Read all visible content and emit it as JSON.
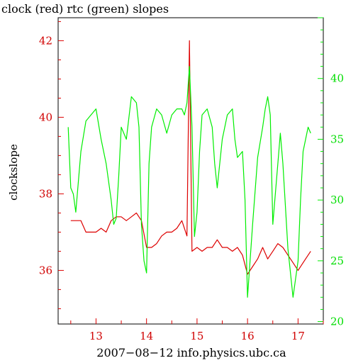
{
  "chart_data": {
    "type": "line",
    "title": "clock (red) rtc (green) slopes",
    "xlabel": "2007−08−12 info.physics.ubc.ca",
    "ylabel": "clockslope",
    "x_ticks": [
      "13",
      "14",
      "15",
      "16",
      "17"
    ],
    "y_left_ticks": [
      "36",
      "38",
      "40",
      "42"
    ],
    "y_right_ticks": [
      "20",
      "25",
      "30",
      "35",
      "40"
    ],
    "xlim": [
      12.25,
      17.5
    ],
    "ylim_left": [
      34.6,
      42.6
    ],
    "ylim_right": [
      19.8,
      45.0
    ],
    "colors": {
      "clock": "#dd0000",
      "rtc": "#00ee00",
      "frame": "#000000"
    },
    "series": [
      {
        "axis": "left",
        "color": "#dd0000",
        "x": [
          12.5,
          12.6,
          12.7,
          12.8,
          12.9,
          13.0,
          13.1,
          13.2,
          13.3,
          13.4,
          13.5,
          13.6,
          13.7,
          13.8,
          13.9,
          14.0,
          14.1,
          14.2,
          14.3,
          14.4,
          14.5,
          14.6,
          14.7,
          14.8,
          14.85,
          14.9,
          15.0,
          15.1,
          15.2,
          15.3,
          15.4,
          15.5,
          15.6,
          15.7,
          15.8,
          15.9,
          16.0,
          16.1,
          16.2,
          16.3,
          16.4,
          16.5,
          16.6,
          16.7,
          16.8,
          16.9,
          17.0,
          17.1,
          17.2,
          17.25
        ],
        "y": [
          37.3,
          37.3,
          37.3,
          37.0,
          37.0,
          37.0,
          37.1,
          37.0,
          37.3,
          37.4,
          37.4,
          37.3,
          37.4,
          37.5,
          37.3,
          36.6,
          36.6,
          36.7,
          36.9,
          37.0,
          37.0,
          37.1,
          37.3,
          36.9,
          42.0,
          36.5,
          36.6,
          36.5,
          36.6,
          36.6,
          36.8,
          36.6,
          36.6,
          36.5,
          36.6,
          36.4,
          35.9,
          36.1,
          36.3,
          36.6,
          36.3,
          36.5,
          36.7,
          36.6,
          36.4,
          36.2,
          36.0,
          36.2,
          36.4,
          36.5
        ]
      },
      {
        "axis": "right",
        "color": "#00ee00",
        "x": [
          12.45,
          12.5,
          12.55,
          12.6,
          12.7,
          12.8,
          12.9,
          13.0,
          13.1,
          13.2,
          13.3,
          13.35,
          13.4,
          13.45,
          13.5,
          13.6,
          13.7,
          13.8,
          13.85,
          13.9,
          13.95,
          14.0,
          14.05,
          14.1,
          14.2,
          14.3,
          14.4,
          14.5,
          14.6,
          14.7,
          14.75,
          14.8,
          14.85,
          14.9,
          14.95,
          15.0,
          15.05,
          15.1,
          15.2,
          15.3,
          15.35,
          15.4,
          15.5,
          15.6,
          15.7,
          15.75,
          15.8,
          15.9,
          15.95,
          16.0,
          16.05,
          16.1,
          16.2,
          16.3,
          16.35,
          16.4,
          16.45,
          16.5,
          16.6,
          16.65,
          16.7,
          16.8,
          16.9,
          17.0,
          17.05,
          17.1,
          17.2,
          17.25
        ],
        "y": [
          36.0,
          31.0,
          30.5,
          29.0,
          34.0,
          36.5,
          37.0,
          37.5,
          35.0,
          33.0,
          30.0,
          28.0,
          28.5,
          32.0,
          36.0,
          35.0,
          38.5,
          38.0,
          36.0,
          28.0,
          25.0,
          24.0,
          33.0,
          36.0,
          37.5,
          37.0,
          35.5,
          37.0,
          37.5,
          37.5,
          37.0,
          38.0,
          41.0,
          36.0,
          27.0,
          29.0,
          34.0,
          37.0,
          37.5,
          36.0,
          33.0,
          31.0,
          35.0,
          37.0,
          37.5,
          35.0,
          33.5,
          34.0,
          30.0,
          22.0,
          25.0,
          28.0,
          33.5,
          36.0,
          37.5,
          38.5,
          37.0,
          28.0,
          33.0,
          35.5,
          33.0,
          26.0,
          22.0,
          25.0,
          30.0,
          34.0,
          36.0,
          35.5
        ]
      }
    ]
  }
}
